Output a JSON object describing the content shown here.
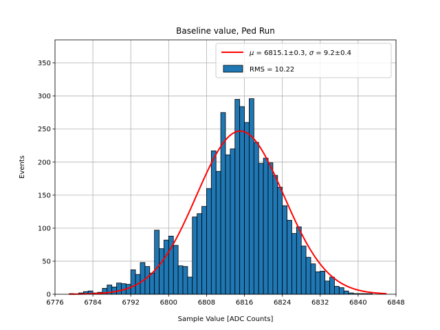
{
  "chart_data": {
    "type": "bar",
    "title": "Baseline value, Ped Run",
    "xlabel": "Sample Value [ADC Counts]",
    "ylabel": "Events",
    "xlim": [
      6776,
      6848
    ],
    "ylim": [
      0,
      385
    ],
    "xticks": [
      "6776",
      "6784",
      "6792",
      "6800",
      "6808",
      "6816",
      "6824",
      "6832",
      "6840",
      "6848"
    ],
    "yticks": [
      "0",
      "50",
      "100",
      "150",
      "200",
      "250",
      "300",
      "350"
    ],
    "grid": true,
    "legend_position": "top-right",
    "legend": {
      "fit_label": "$\\mu = 6815.1 \\pm 0.3$, $\\sigma = 9.2 \\pm 0.4$",
      "fit_label_parts": [
        "μ",
        " = 6815.1±0.3, ",
        "σ",
        " = 9.2±0.4"
      ],
      "hist_label": "RMS = 10.22"
    },
    "colors": {
      "bars": "#1f77b4",
      "bar_edge": "#000000",
      "fit": "#ff0000"
    },
    "histogram": {
      "bin_start": 6779,
      "bin_width": 1,
      "counts": [
        1,
        0,
        2,
        4,
        5,
        2,
        3,
        9,
        14,
        11,
        17,
        16,
        15,
        37,
        30,
        48,
        42,
        32,
        97,
        69,
        82,
        88,
        74,
        43,
        42,
        26,
        117,
        122,
        133,
        160,
        217,
        186,
        275,
        211,
        220,
        295,
        284,
        260,
        296,
        230,
        198,
        206,
        199,
        180,
        162,
        134,
        112,
        92,
        102,
        73,
        56,
        46,
        34,
        35,
        20,
        26,
        12,
        10,
        5,
        2,
        1,
        1,
        1,
        1
      ]
    },
    "fit": {
      "type": "gaussian",
      "mu": 6815.1,
      "sigma": 9.2,
      "amplitude": 247,
      "x_range": [
        6779,
        6846
      ]
    }
  }
}
